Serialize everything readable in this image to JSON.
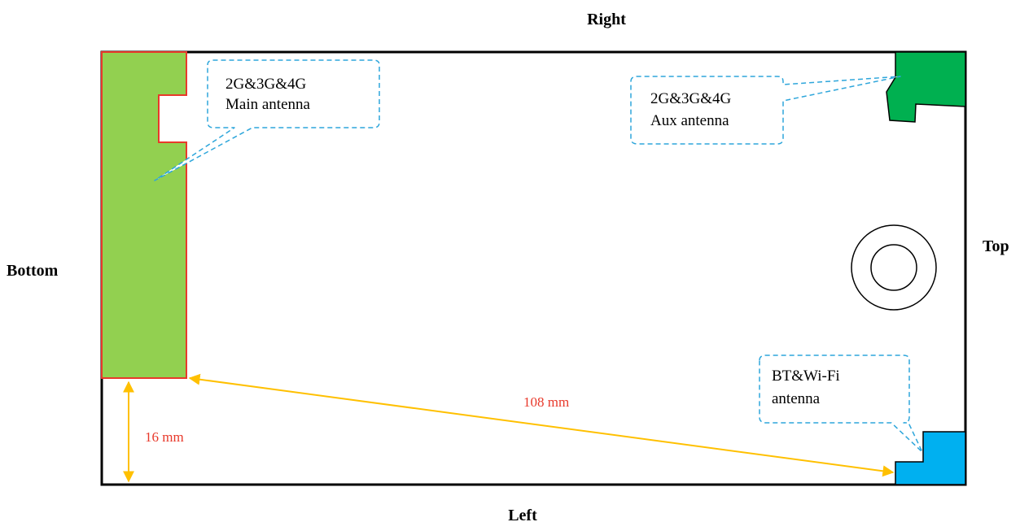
{
  "sides": {
    "top_edge": "Right",
    "right_edge": "Top",
    "left_edge": "Bottom",
    "bottom_edge": "Left"
  },
  "antennas": {
    "main": {
      "line1": "2G&3G&4G",
      "line2": "Main antenna",
      "color": "#92D050",
      "outline": "#E8392B"
    },
    "aux": {
      "line1": "2G&3G&4G",
      "line2": "Aux antenna",
      "color": "#00B050"
    },
    "bt_wifi": {
      "line1": "BT&Wi-Fi",
      "line2": "antenna",
      "color": "#00B0F0"
    }
  },
  "dimensions": {
    "diagonal": "108 mm",
    "vertical": "16 mm",
    "text_color": "#E8392B",
    "arrow_color": "#FFC000"
  },
  "callout_color": "#2EA6DB"
}
